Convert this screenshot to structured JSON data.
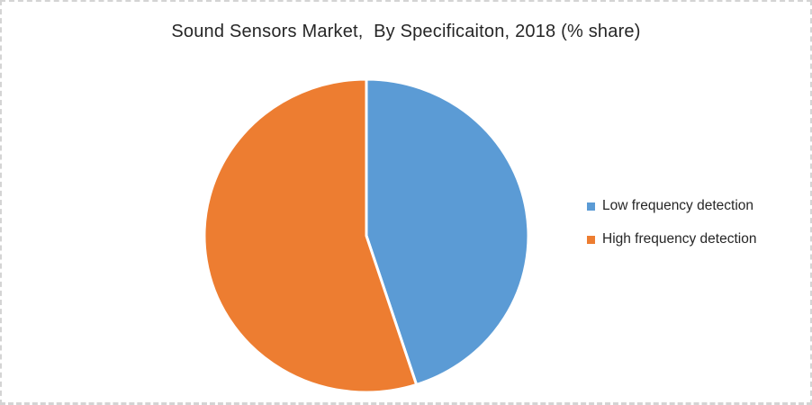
{
  "chart": {
    "title": "Sound Sensors Market,  By Specificaiton, 2018 (% share)",
    "title_color": "#262626",
    "background_color": "#ffffff",
    "frame_border_color": "#d4d4d4",
    "legend": {
      "position": "right",
      "items": [
        {
          "label": "Low frequency detection",
          "color": "#5B9BD5"
        },
        {
          "label": "High frequency detection",
          "color": "#ED7D31"
        }
      ]
    }
  },
  "chart_data": {
    "type": "pie",
    "title": "Sound Sensors Market,  By Specificaiton, 2018 (% share)",
    "categories": [
      "Low frequency detection",
      "High frequency detection"
    ],
    "values": [
      45,
      55
    ],
    "unit": "% share",
    "colors": [
      "#5B9BD5",
      "#ED7D31"
    ],
    "start_angle_deg": 0,
    "direction": "clockwise",
    "slice_border_color": "#ffffff",
    "legend_position": "right",
    "data_labels": "none"
  }
}
